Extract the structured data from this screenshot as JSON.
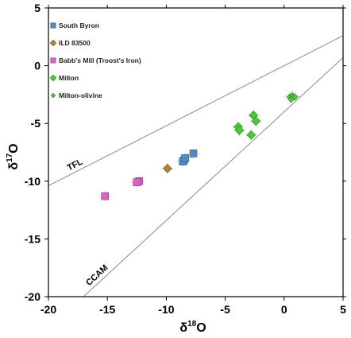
{
  "chart_data": {
    "type": "scatter",
    "xlabel": {
      "base": "δ",
      "sup": "18",
      "tail": "O"
    },
    "ylabel": {
      "base": "δ",
      "sup": "17",
      "tail": "O"
    },
    "xlim": [
      -20,
      5
    ],
    "ylim": [
      -20,
      5
    ],
    "x_ticks": [
      "-20",
      "-15",
      "-10",
      "-5",
      "0",
      "5"
    ],
    "y_ticks": [
      "5",
      "0",
      "-5",
      "-10",
      "-15",
      "-20"
    ],
    "x_tick_values": [
      -20,
      -15,
      -10,
      -5,
      0,
      5
    ],
    "y_tick_values": [
      5,
      0,
      -5,
      -10,
      -15,
      -20
    ],
    "grid": false,
    "legend_position": "top-left",
    "reference_lines": [
      {
        "label": "TFL",
        "slope": 0.52,
        "intercept": 0.0
      },
      {
        "label": "CCAM",
        "slope": 0.94,
        "intercept": -4.0
      }
    ],
    "series": [
      {
        "name": "South Byron",
        "marker": "square",
        "color": "#4a8fc9",
        "points": [
          [
            -8.5,
            -8.2
          ],
          [
            -8.6,
            -8.3
          ],
          [
            -8.4,
            -8.0
          ],
          [
            -7.7,
            -7.6
          ]
        ]
      },
      {
        "name": "ILD 83500",
        "marker": "diamond",
        "color": "#c07a3a",
        "points": [
          [
            -9.9,
            -8.9
          ]
        ]
      },
      {
        "name": "Babb's Mill (Troost's Iron)",
        "marker": "square",
        "color": "#e05fc8",
        "points": [
          [
            -12.3,
            -10.0
          ],
          [
            -12.5,
            -10.1
          ],
          [
            -15.2,
            -11.3
          ]
        ]
      },
      {
        "name": "Milton",
        "marker": "diamond",
        "color": "#4ec73c",
        "points": [
          [
            -3.9,
            -5.3
          ],
          [
            -3.8,
            -5.6
          ],
          [
            -2.8,
            -6.0
          ],
          [
            -2.6,
            -4.3
          ],
          [
            -2.4,
            -4.8
          ]
        ]
      },
      {
        "name": "Milton-olivine",
        "marker": "diamond-small",
        "color": "#4ec73c",
        "points": [
          [
            0.5,
            -2.7
          ],
          [
            0.7,
            -2.6
          ],
          [
            0.9,
            -2.7
          ],
          [
            0.6,
            -2.9
          ]
        ]
      }
    ]
  }
}
